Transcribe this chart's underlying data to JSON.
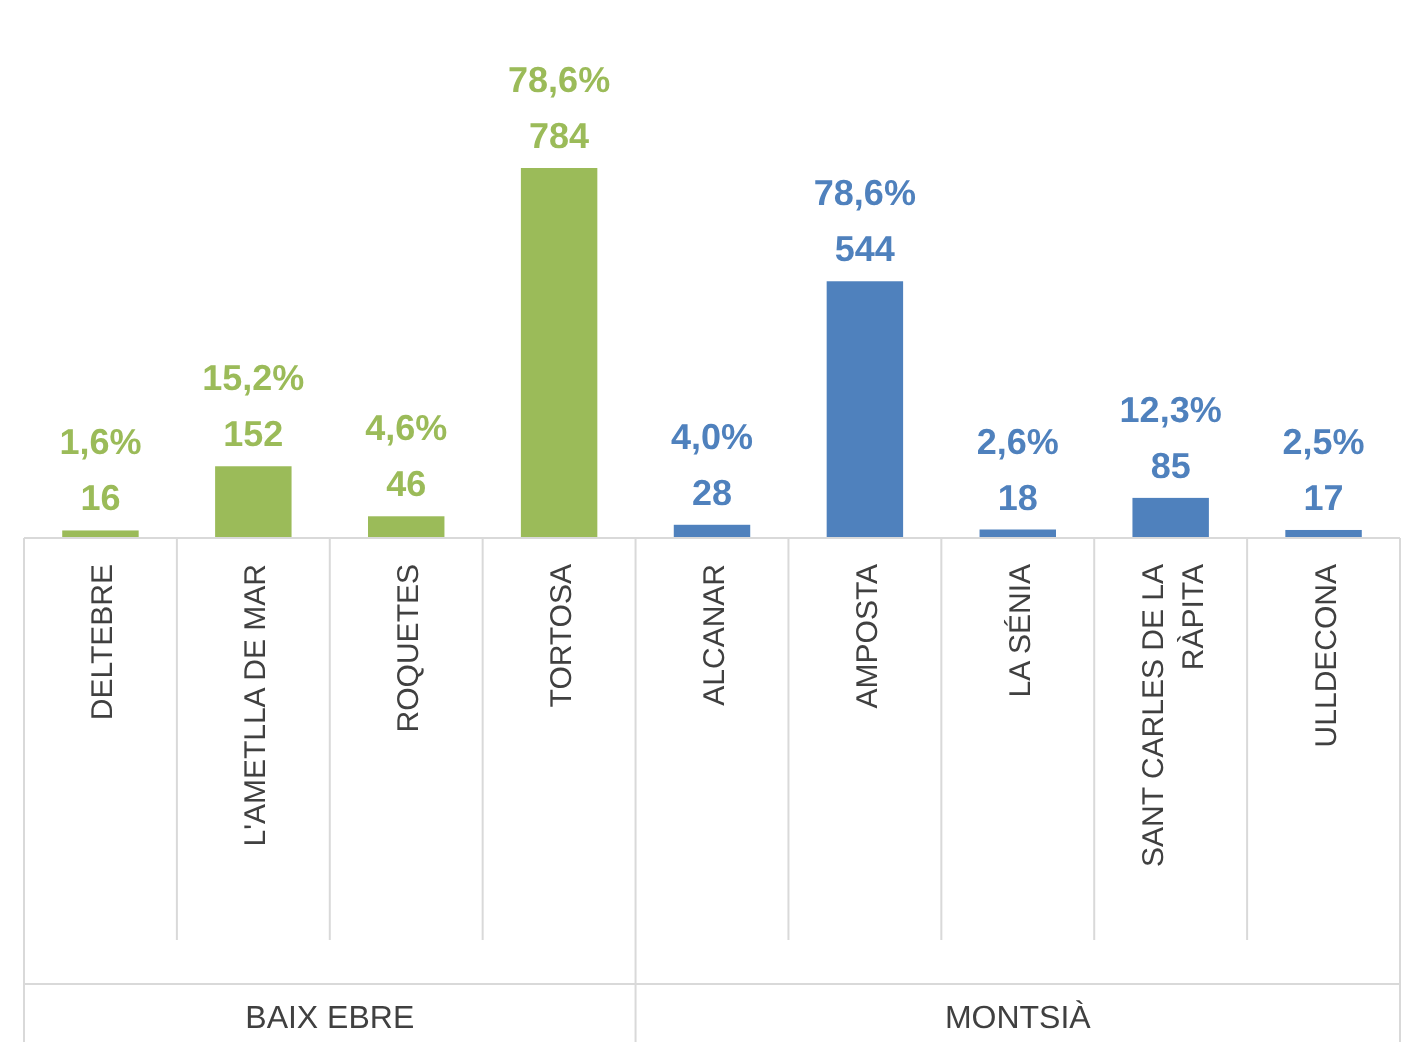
{
  "chart_data": {
    "type": "bar",
    "annotations": [
      "BAIX EBRE",
      "MONTSIÀ"
    ],
    "categories": [
      "DELTEBRE",
      "L'AMETLLA DE MAR",
      "ROQUETES",
      "TORTOSA",
      "ALCANAR",
      "AMPOSTA",
      "LA SÉNIA",
      "SANT CARLES DE LA RÀPITA",
      "ULLDECONA"
    ],
    "series": [
      {
        "color": "#9bbb59",
        "values": [
          16,
          152,
          46,
          784,
          null,
          null,
          null,
          null,
          null
        ],
        "value_labels": [
          "1,6%\n16",
          "15,2%\n152",
          "4,6%\n46",
          "78,6%\n784",
          null,
          null,
          null,
          null,
          null
        ]
      },
      {
        "color": "#4f81bd",
        "values": [
          null,
          null,
          null,
          null,
          28,
          544,
          18,
          85,
          17
        ],
        "value_labels": [
          null,
          null,
          null,
          null,
          "4,0%\n28",
          "78,6%\n544",
          "2,6%\n18",
          "12,3%\n85",
          "2,5%\n17"
        ]
      }
    ]
  }
}
